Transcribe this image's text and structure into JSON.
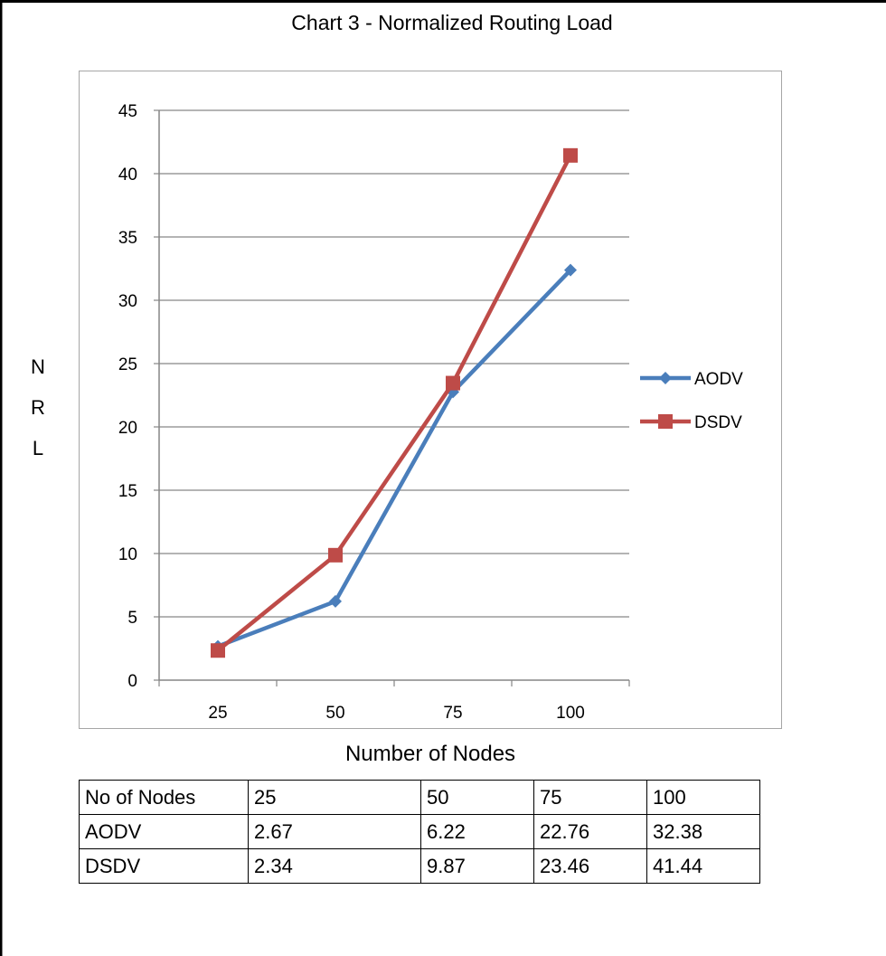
{
  "chart_data": {
    "type": "line",
    "title": "Chart 3 - Normalized Routing Load",
    "xlabel": "Number of Nodes",
    "ylabel": "N R L",
    "ylabel_letters": [
      "N",
      "R",
      "L"
    ],
    "categories": [
      "25",
      "50",
      "75",
      "100"
    ],
    "ylim": [
      0,
      45
    ],
    "yticks": [
      0,
      5,
      10,
      15,
      20,
      25,
      30,
      35,
      40,
      45
    ],
    "grid": true,
    "legend_position": "right",
    "series": [
      {
        "name": "AODV",
        "values": [
          2.67,
          6.22,
          22.76,
          32.38
        ],
        "color": "#4a7ebb",
        "marker": "diamond"
      },
      {
        "name": "DSDV",
        "values": [
          2.34,
          9.87,
          23.46,
          41.44
        ],
        "color": "#be4b48",
        "marker": "square"
      }
    ]
  },
  "table": {
    "header": [
      "No of Nodes",
      "25",
      "50",
      "75",
      "100"
    ],
    "rows": [
      [
        "AODV",
        "2.67",
        "6.22",
        "22.76",
        "32.38"
      ],
      [
        "DSDV",
        "2.34",
        "9.87",
        "23.46",
        "41.44"
      ]
    ]
  },
  "colors": {
    "gridline": "#868686",
    "axis": "#868686",
    "plot_border": "#a6a6a6",
    "frame": "#000000"
  }
}
